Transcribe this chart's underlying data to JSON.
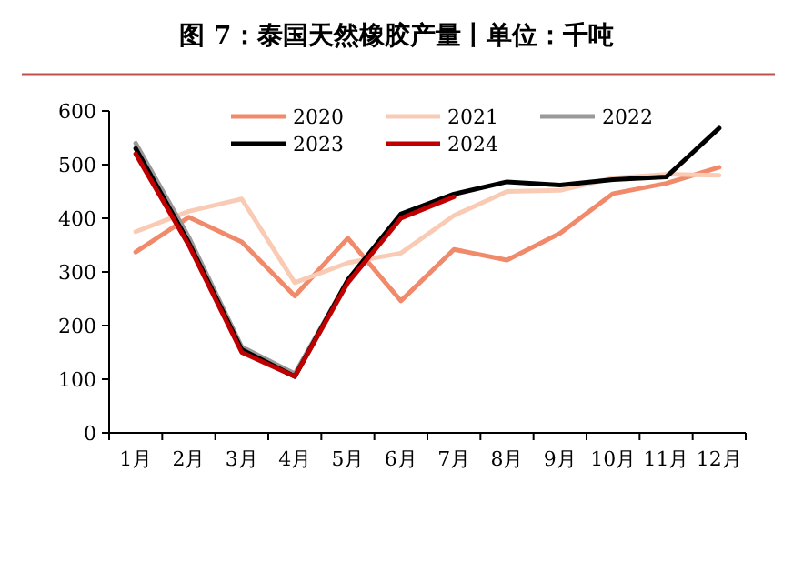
{
  "chart_data": {
    "type": "line",
    "title": "图 7：泰国天然橡胶产量丨单位：千吨",
    "categories": [
      "1月",
      "2月",
      "3月",
      "4月",
      "5月",
      "6月",
      "7月",
      "8月",
      "9月",
      "10月",
      "11月",
      "12月"
    ],
    "series": [
      {
        "name": "2020",
        "color": "#f08a6a",
        "values": [
          337,
          402,
          356,
          255,
          363,
          246,
          342,
          322,
          372,
          446,
          465,
          495
        ]
      },
      {
        "name": "2021",
        "color": "#f9cbb5",
        "values": [
          375,
          413,
          436,
          280,
          317,
          335,
          405,
          450,
          452,
          475,
          482,
          480
        ]
      },
      {
        "name": "2022",
        "color": "#999999",
        "values": [
          540,
          365,
          160,
          110,
          285,
          408,
          445,
          null,
          null,
          null,
          null,
          null
        ]
      },
      {
        "name": "2023",
        "color": "#000000",
        "values": [
          530,
          355,
          155,
          105,
          285,
          408,
          445,
          468,
          462,
          472,
          477,
          568
        ]
      },
      {
        "name": "2024",
        "color": "#c00000",
        "values": [
          520,
          350,
          150,
          105,
          280,
          400,
          440,
          null,
          null,
          null,
          null,
          null
        ]
      }
    ],
    "ylim": [
      0,
      600
    ],
    "yticks": [
      0,
      100,
      200,
      300,
      400,
      500,
      600
    ],
    "grid": false,
    "legend": "top",
    "marker": "none",
    "line_style": "solid"
  }
}
